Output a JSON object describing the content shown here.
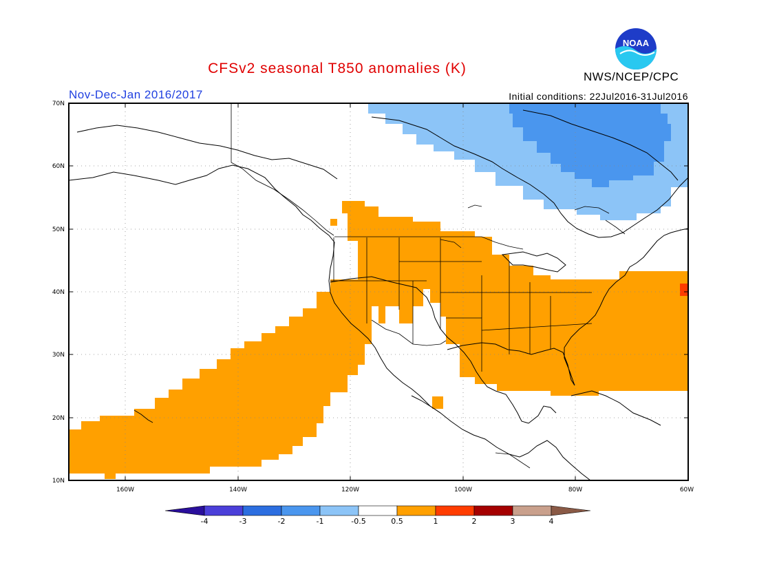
{
  "header": {
    "title": "CFSv2 seasonal T850 anomalies (K)",
    "period": "Nov-Dec-Jan 2016/2017",
    "initial_conditions": "Initial conditions: 22Jul2016-31Jul2016",
    "agency": "NWS/NCEP/CPC",
    "logo_text": "NOAA"
  },
  "map": {
    "lat_labels": [
      "70N",
      "60N",
      "50N",
      "40N",
      "30N",
      "20N",
      "10N"
    ],
    "lon_labels": [
      "160W",
      "140W",
      "120W",
      "100W",
      "80W",
      "60W"
    ]
  },
  "colorbar": {
    "labels": [
      "-4",
      "-3",
      "-2",
      "-1",
      "-0.5",
      "0.5",
      "1",
      "2",
      "3",
      "4"
    ],
    "colors": [
      "#2a0f9c",
      "#4b3fd9",
      "#2c6ee0",
      "#4a96ee",
      "#8cc4f7",
      "#ffffff",
      "#ffa000",
      "#ff3c00",
      "#a50000",
      "#c9a08c",
      "#8a5a46"
    ]
  }
}
